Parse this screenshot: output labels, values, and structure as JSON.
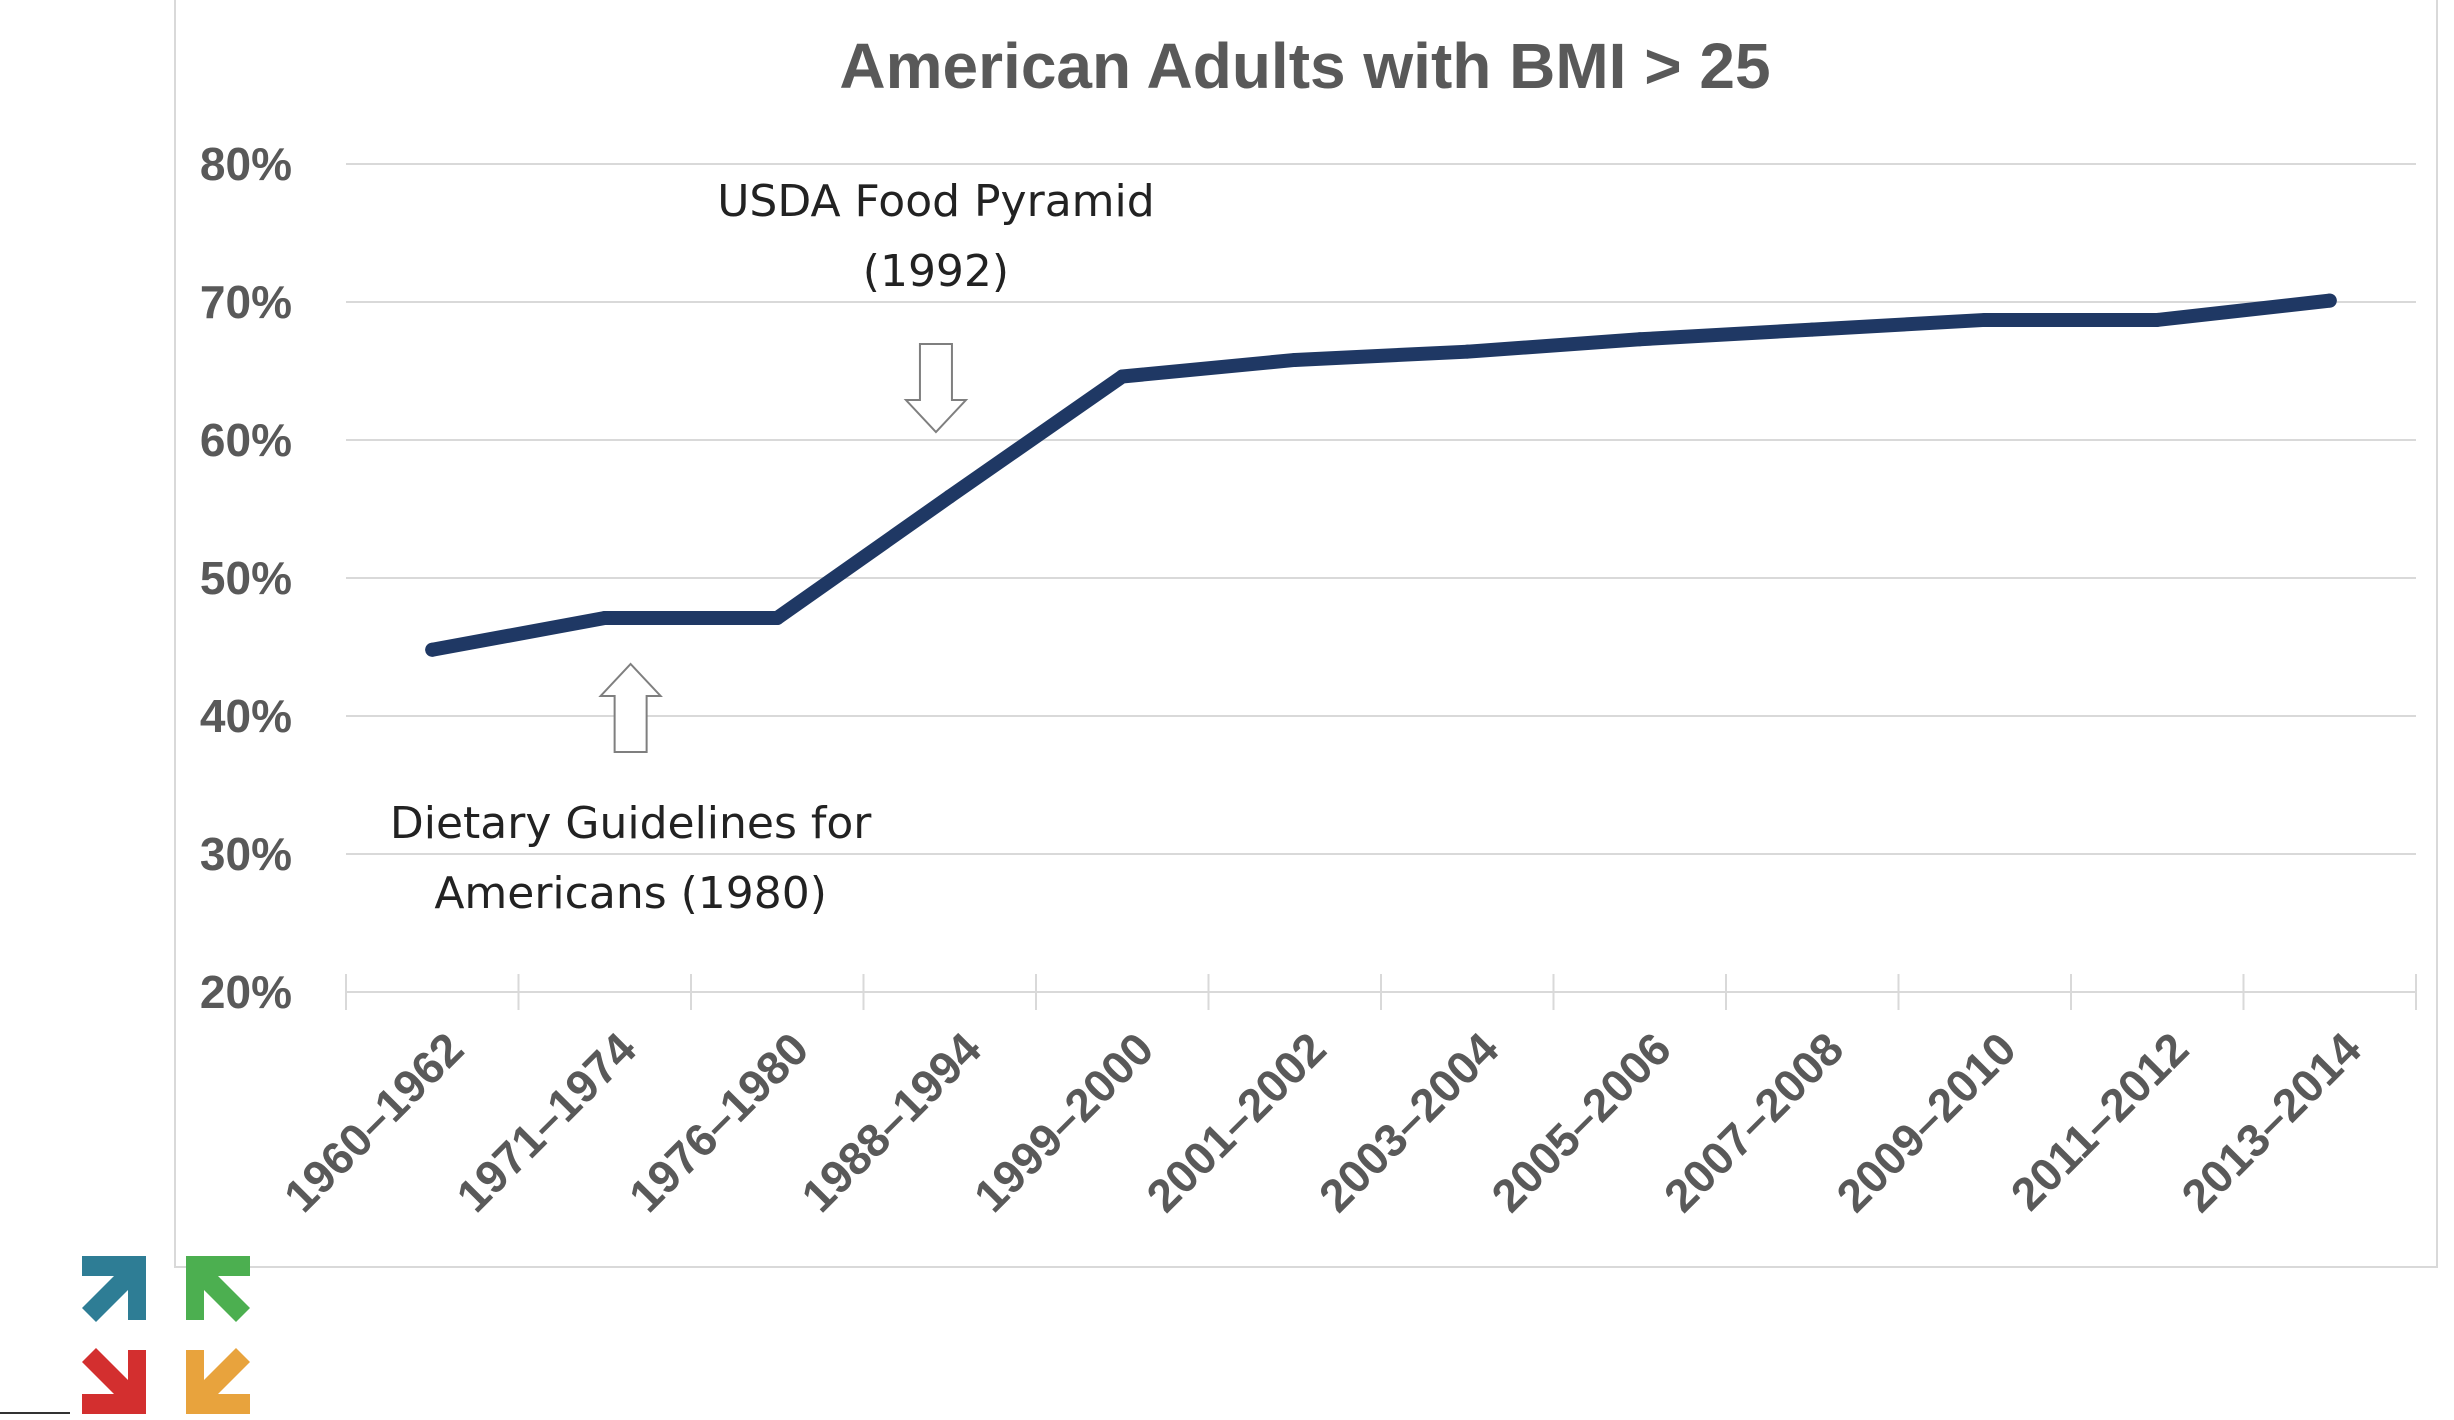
{
  "chart_data": {
    "type": "line",
    "title": "American Adults with BMI > 25",
    "xlabel": "",
    "ylabel": "",
    "categories": [
      "1960–1962",
      "1971–1974",
      "1976–1980",
      "1988–1994",
      "1999–2000",
      "2001–2002",
      "2003–2004",
      "2005–2006",
      "2007–2008",
      "2009–2010",
      "2011–2012",
      "2013–2014"
    ],
    "series": [
      {
        "values": [
          44.8,
          47.1,
          47.1,
          55.9,
          64.6,
          65.8,
          66.4,
          67.3,
          68.0,
          68.7,
          68.7,
          70.1
        ]
      }
    ],
    "ylim": [
      20,
      80
    ],
    "yticks": [
      80,
      70,
      60,
      50,
      40,
      30,
      20
    ],
    "ytick_labels": [
      "80%",
      "70%",
      "60%",
      "50%",
      "40%",
      "30%",
      "20%"
    ],
    "grid": true,
    "line_color": "#1f3864",
    "annotations": [
      {
        "lines": [
          "USDA Food Pyramid",
          "(1992)"
        ],
        "arrow": "down",
        "category_position": 3
      },
      {
        "lines": [
          "Dietary Guidelines for",
          "Americans (1980)"
        ],
        "arrow": "up",
        "category_position": 2
      }
    ]
  },
  "logo": {
    "colors": [
      "#2e7d95",
      "#4caf50",
      "#d32f2f",
      "#e8a33d"
    ]
  }
}
